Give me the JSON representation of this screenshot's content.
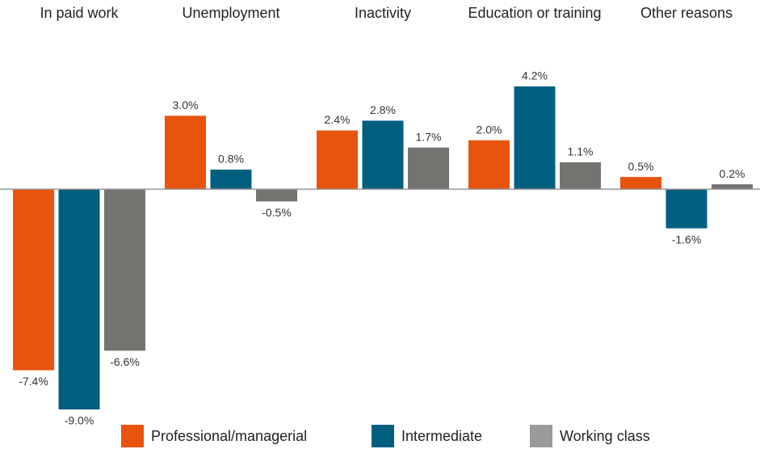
{
  "chart_data": {
    "type": "bar",
    "categories": [
      "In paid work",
      "Unemployment",
      "Inactivity",
      "Education or training",
      "Other reasons"
    ],
    "series": [
      {
        "name": "Professional/managerial",
        "color": "#e8540e",
        "values": [
          -7.4,
          3.0,
          2.4,
          2.0,
          0.5
        ],
        "value_labels": [
          "-7.4%",
          "3.0%",
          "2.4%",
          "2.0%",
          "0.5%"
        ]
      },
      {
        "name": "Intermediate",
        "color": "#005f7f",
        "values": [
          -9.0,
          0.8,
          2.8,
          4.2,
          -1.6
        ],
        "value_labels": [
          "-9.0%",
          "0.8%",
          "2.8%",
          "4.2%",
          "-1.6%"
        ]
      },
      {
        "name": "Working class",
        "color": "#747370",
        "values": [
          -6.6,
          -0.5,
          1.7,
          1.1,
          0.2
        ],
        "value_labels": [
          "-6.6%",
          "-0.5%",
          "1.7%",
          "1.1%",
          "0.2%"
        ]
      }
    ]
  }
}
